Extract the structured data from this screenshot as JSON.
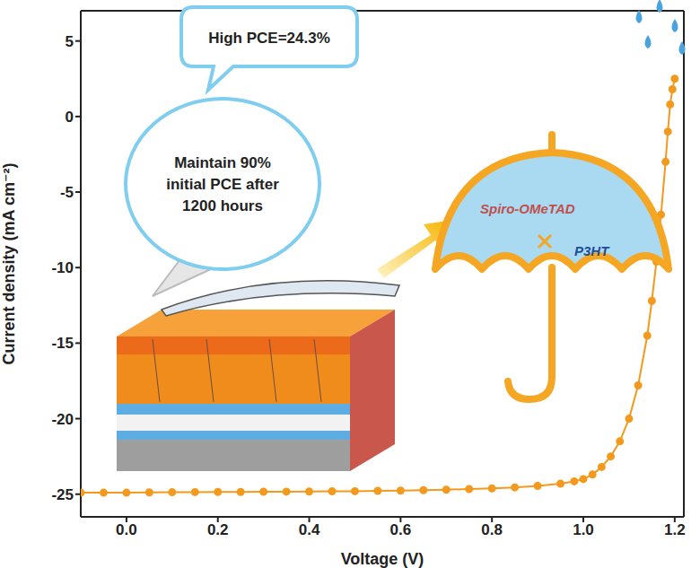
{
  "chart_data": {
    "type": "line",
    "x_label": "Voltage (V)",
    "y_label": "Current density (mA cm⁻²)",
    "color": "#f39a1e",
    "marker": "o",
    "grid": false,
    "xlim": [
      -0.1,
      1.22
    ],
    "ylim": [
      -26.5,
      7
    ],
    "xticks": [
      {
        "value": 0,
        "label": "0.0"
      },
      0.2,
      0.4,
      0.6,
      0.8,
      {
        "value": 1,
        "label": "1.0"
      },
      1.2
    ],
    "yticks": [
      -25,
      -20,
      -15,
      -10,
      -5,
      0,
      5
    ],
    "x": [
      -0.1,
      -0.05,
      0,
      0.05,
      0.1,
      0.15,
      0.2,
      0.25,
      0.3,
      0.35,
      0.4,
      0.45,
      0.5,
      0.55,
      0.6,
      0.65,
      0.7,
      0.75,
      0.8,
      0.85,
      0.9,
      0.95,
      0.98,
      1.0,
      1.02,
      1.04,
      1.06,
      1.08,
      1.1,
      1.12,
      1.14,
      1.15,
      1.16,
      1.17,
      1.18,
      1.185,
      1.19,
      1.195,
      1.2
    ],
    "values": [
      -24.9,
      -24.9,
      -24.9,
      -24.88,
      -24.87,
      -24.86,
      -24.85,
      -24.85,
      -24.84,
      -24.83,
      -24.82,
      -24.81,
      -24.8,
      -24.78,
      -24.76,
      -24.73,
      -24.7,
      -24.66,
      -24.62,
      -24.55,
      -24.45,
      -24.3,
      -24.15,
      -24.0,
      -23.7,
      -23.2,
      -22.5,
      -21.5,
      -20.0,
      -17.8,
      -14.5,
      -12.2,
      -9.6,
      -6.5,
      -3.0,
      -1.0,
      0.8,
      1.8,
      2.5
    ],
    "annotations": [
      "High PCE=24.3%",
      "Maintain 90% initial PCE after 1200 hours",
      "Spiro-OMeTAD",
      "P3HT"
    ]
  }
}
